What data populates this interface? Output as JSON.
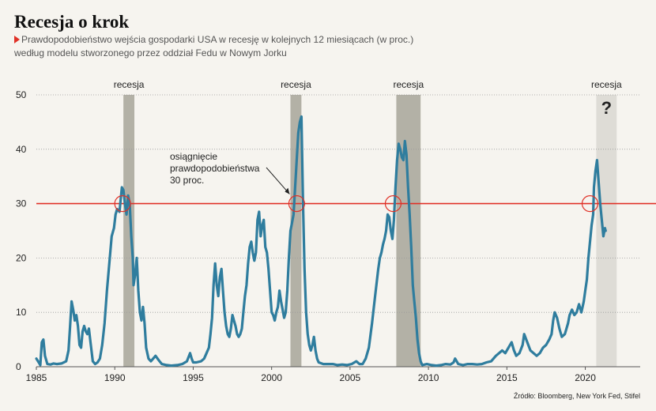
{
  "header": {
    "title": "Recesja o krok",
    "subtitle_line1": "Prawdopodobieństwo wejścia gospodarki USA w recesję w kolejnych 12 miesiącach (w proc.)",
    "subtitle_line2": "według modelu stworzonego przez oddział Fedu w Nowym Jorku"
  },
  "source": "Źródło: Bloomberg, New York Fed, Stifel",
  "colors": {
    "line": "#2f7d9e",
    "threshold": "#e03127",
    "recession": "#b3b1a6",
    "forecast": "#dedcd6",
    "background": "#f6f4ef"
  },
  "chart_data": {
    "type": "line",
    "x_axis": {
      "min": 1985,
      "max": 2023.5,
      "ticks": [
        1985,
        1990,
        1995,
        2000,
        2005,
        2010,
        2015,
        2020
      ],
      "tick_labels": [
        "1985",
        "1990",
        "1995",
        "2000",
        "2005",
        "2010",
        "2015",
        "2020"
      ]
    },
    "y_axis": {
      "min": 0,
      "max": 50,
      "ticks": [
        0,
        10,
        20,
        30,
        40,
        50
      ],
      "tick_labels": [
        "0",
        "10",
        "20",
        "30",
        "40",
        "50"
      ]
    },
    "grid": "horizontal dotted",
    "recessions": [
      {
        "start": 1990.55,
        "end": 1991.25,
        "label": "recesja"
      },
      {
        "start": 2001.2,
        "end": 2001.9,
        "label": "recesja"
      },
      {
        "start": 2007.95,
        "end": 2009.5,
        "label": "recesja"
      },
      {
        "start": 2020.7,
        "end": 2022.0,
        "label": "recesja",
        "question_mark": "?",
        "forecast": true
      }
    ],
    "threshold": {
      "value": 30
    },
    "threshold_crossings": [
      1990.5,
      2001.6,
      2007.75,
      2020.3
    ],
    "annotation": {
      "lines": [
        "osiągnięcie",
        "prawdopodobieństwa",
        "30 proc."
      ],
      "points_to": [
        2001.6,
        30
      ]
    },
    "series": [
      {
        "values": [
          [
            1985.0,
            1.5
          ],
          [
            1985.15,
            0.8
          ],
          [
            1985.25,
            0.3
          ],
          [
            1985.35,
            4.5
          ],
          [
            1985.45,
            5.0
          ],
          [
            1985.55,
            2.0
          ],
          [
            1985.7,
            0.5
          ],
          [
            1985.9,
            0.4
          ],
          [
            1986.1,
            0.6
          ],
          [
            1986.3,
            0.5
          ],
          [
            1986.6,
            0.6
          ],
          [
            1986.9,
            1.0
          ],
          [
            1987.05,
            3.0
          ],
          [
            1987.15,
            7.5
          ],
          [
            1987.25,
            12.0
          ],
          [
            1987.35,
            10.5
          ],
          [
            1987.45,
            8.5
          ],
          [
            1987.55,
            9.5
          ],
          [
            1987.65,
            7.5
          ],
          [
            1987.75,
            4.0
          ],
          [
            1987.85,
            3.5
          ],
          [
            1987.95,
            6.5
          ],
          [
            1988.05,
            7.5
          ],
          [
            1988.15,
            6.5
          ],
          [
            1988.25,
            6.0
          ],
          [
            1988.35,
            7.0
          ],
          [
            1988.45,
            4.5
          ],
          [
            1988.6,
            1.0
          ],
          [
            1988.75,
            0.5
          ],
          [
            1988.9,
            0.8
          ],
          [
            1989.05,
            1.5
          ],
          [
            1989.2,
            4.0
          ],
          [
            1989.35,
            8.0
          ],
          [
            1989.5,
            14.0
          ],
          [
            1989.65,
            19.0
          ],
          [
            1989.8,
            24.0
          ],
          [
            1989.95,
            25.5
          ],
          [
            1990.05,
            28.0
          ],
          [
            1990.15,
            29.0
          ],
          [
            1990.3,
            28.5
          ],
          [
            1990.45,
            33.0
          ],
          [
            1990.55,
            32.5
          ],
          [
            1990.65,
            30.0
          ],
          [
            1990.75,
            28.0
          ],
          [
            1990.85,
            31.5
          ],
          [
            1990.95,
            30.0
          ],
          [
            1991.05,
            24.0
          ],
          [
            1991.15,
            20.0
          ],
          [
            1991.2,
            15.0
          ],
          [
            1991.3,
            17.0
          ],
          [
            1991.4,
            20.0
          ],
          [
            1991.5,
            14.0
          ],
          [
            1991.6,
            10.0
          ],
          [
            1991.7,
            8.5
          ],
          [
            1991.8,
            11.0
          ],
          [
            1991.9,
            8.0
          ],
          [
            1992.0,
            3.5
          ],
          [
            1992.15,
            1.5
          ],
          [
            1992.3,
            1.0
          ],
          [
            1992.45,
            1.5
          ],
          [
            1992.6,
            2.0
          ],
          [
            1992.8,
            1.2
          ],
          [
            1993.0,
            0.5
          ],
          [
            1993.3,
            0.3
          ],
          [
            1993.6,
            0.2
          ],
          [
            1994.0,
            0.3
          ],
          [
            1994.3,
            0.5
          ],
          [
            1994.6,
            1.0
          ],
          [
            1994.8,
            2.5
          ],
          [
            1994.9,
            1.5
          ],
          [
            1995.0,
            0.8
          ],
          [
            1995.2,
            0.8
          ],
          [
            1995.5,
            1.0
          ],
          [
            1995.7,
            1.5
          ],
          [
            1995.85,
            2.5
          ],
          [
            1996.0,
            3.5
          ],
          [
            1996.1,
            6.0
          ],
          [
            1996.2,
            9.0
          ],
          [
            1996.3,
            15.0
          ],
          [
            1996.4,
            19.0
          ],
          [
            1996.5,
            15.0
          ],
          [
            1996.6,
            13.0
          ],
          [
            1996.7,
            16.5
          ],
          [
            1996.8,
            18.0
          ],
          [
            1996.9,
            14.0
          ],
          [
            1997.0,
            10.0
          ],
          [
            1997.1,
            7.5
          ],
          [
            1997.2,
            6.0
          ],
          [
            1997.3,
            5.5
          ],
          [
            1997.4,
            7.0
          ],
          [
            1997.5,
            9.5
          ],
          [
            1997.6,
            8.5
          ],
          [
            1997.7,
            7.5
          ],
          [
            1997.8,
            6.0
          ],
          [
            1997.9,
            5.5
          ],
          [
            1998.0,
            6.0
          ],
          [
            1998.1,
            7.0
          ],
          [
            1998.2,
            10.0
          ],
          [
            1998.3,
            13.0
          ],
          [
            1998.4,
            15.0
          ],
          [
            1998.5,
            19.0
          ],
          [
            1998.6,
            22.0
          ],
          [
            1998.7,
            23.0
          ],
          [
            1998.8,
            21.0
          ],
          [
            1998.9,
            19.5
          ],
          [
            1999.0,
            21.0
          ],
          [
            1999.1,
            27.0
          ],
          [
            1999.2,
            28.5
          ],
          [
            1999.3,
            24.0
          ],
          [
            1999.4,
            26.0
          ],
          [
            1999.5,
            27.0
          ],
          [
            1999.6,
            22.0
          ],
          [
            1999.7,
            21.0
          ],
          [
            1999.8,
            18.0
          ],
          [
            1999.9,
            14.0
          ],
          [
            2000.0,
            10.0
          ],
          [
            2000.1,
            9.5
          ],
          [
            2000.2,
            8.5
          ],
          [
            2000.3,
            10.0
          ],
          [
            2000.4,
            11.0
          ],
          [
            2000.5,
            14.0
          ],
          [
            2000.6,
            12.0
          ],
          [
            2000.7,
            10.5
          ],
          [
            2000.8,
            9.0
          ],
          [
            2000.9,
            10.0
          ],
          [
            2001.0,
            14.0
          ],
          [
            2001.1,
            20.0
          ],
          [
            2001.2,
            25.0
          ],
          [
            2001.3,
            26.5
          ],
          [
            2001.4,
            28.0
          ],
          [
            2001.5,
            33.0
          ],
          [
            2001.6,
            38.0
          ],
          [
            2001.7,
            43.0
          ],
          [
            2001.8,
            45.0
          ],
          [
            2001.9,
            46.0
          ],
          [
            2002.0,
            30.0
          ],
          [
            2002.1,
            18.0
          ],
          [
            2002.2,
            10.0
          ],
          [
            2002.3,
            6.0
          ],
          [
            2002.4,
            4.0
          ],
          [
            2002.5,
            3.0
          ],
          [
            2002.6,
            4.0
          ],
          [
            2002.7,
            5.5
          ],
          [
            2002.8,
            3.0
          ],
          [
            2002.9,
            1.5
          ],
          [
            2003.0,
            0.8
          ],
          [
            2003.3,
            0.5
          ],
          [
            2003.6,
            0.5
          ],
          [
            2003.9,
            0.5
          ],
          [
            2004.2,
            0.3
          ],
          [
            2004.5,
            0.4
          ],
          [
            2004.8,
            0.3
          ],
          [
            2005.1,
            0.5
          ],
          [
            2005.4,
            1.0
          ],
          [
            2005.6,
            0.5
          ],
          [
            2005.8,
            0.5
          ],
          [
            2006.0,
            1.5
          ],
          [
            2006.2,
            3.5
          ],
          [
            2006.4,
            8.0
          ],
          [
            2006.6,
            13.0
          ],
          [
            2006.8,
            18.0
          ],
          [
            2006.9,
            20.0
          ],
          [
            2007.0,
            21.0
          ],
          [
            2007.1,
            22.5
          ],
          [
            2007.2,
            23.5
          ],
          [
            2007.3,
            25.0
          ],
          [
            2007.4,
            28.0
          ],
          [
            2007.5,
            27.5
          ],
          [
            2007.6,
            25.0
          ],
          [
            2007.7,
            23.5
          ],
          [
            2007.8,
            27.0
          ],
          [
            2007.9,
            33.0
          ],
          [
            2008.0,
            38.0
          ],
          [
            2008.1,
            41.0
          ],
          [
            2008.2,
            40.0
          ],
          [
            2008.3,
            38.5
          ],
          [
            2008.4,
            38.0
          ],
          [
            2008.5,
            41.5
          ],
          [
            2008.6,
            39.0
          ],
          [
            2008.7,
            33.0
          ],
          [
            2008.8,
            28.0
          ],
          [
            2008.9,
            22.0
          ],
          [
            2009.0,
            15.0
          ],
          [
            2009.1,
            12.0
          ],
          [
            2009.2,
            9.0
          ],
          [
            2009.3,
            5.0
          ],
          [
            2009.4,
            2.5
          ],
          [
            2009.5,
            1.0
          ],
          [
            2009.6,
            0.3
          ],
          [
            2009.9,
            0.5
          ],
          [
            2010.2,
            0.3
          ],
          [
            2010.5,
            0.2
          ],
          [
            2010.8,
            0.3
          ],
          [
            2011.1,
            0.5
          ],
          [
            2011.4,
            0.4
          ],
          [
            2011.6,
            0.8
          ],
          [
            2011.7,
            1.5
          ],
          [
            2011.9,
            0.5
          ],
          [
            2012.2,
            0.3
          ],
          [
            2012.5,
            0.5
          ],
          [
            2012.8,
            0.5
          ],
          [
            2013.1,
            0.4
          ],
          [
            2013.4,
            0.5
          ],
          [
            2013.7,
            0.8
          ],
          [
            2014.0,
            1.0
          ],
          [
            2014.3,
            2.0
          ],
          [
            2014.5,
            2.5
          ],
          [
            2014.7,
            3.0
          ],
          [
            2014.9,
            2.5
          ],
          [
            2015.1,
            3.5
          ],
          [
            2015.3,
            4.5
          ],
          [
            2015.45,
            3.0
          ],
          [
            2015.6,
            2.0
          ],
          [
            2015.8,
            2.5
          ],
          [
            2016.0,
            4.0
          ],
          [
            2016.1,
            6.0
          ],
          [
            2016.3,
            4.5
          ],
          [
            2016.5,
            3.0
          ],
          [
            2016.7,
            2.5
          ],
          [
            2016.9,
            2.0
          ],
          [
            2017.1,
            2.5
          ],
          [
            2017.3,
            3.5
          ],
          [
            2017.5,
            4.0
          ],
          [
            2017.7,
            5.0
          ],
          [
            2017.85,
            6.0
          ],
          [
            2017.95,
            8.5
          ],
          [
            2018.05,
            10.0
          ],
          [
            2018.2,
            9.0
          ],
          [
            2018.35,
            7.0
          ],
          [
            2018.5,
            5.5
          ],
          [
            2018.7,
            6.0
          ],
          [
            2018.9,
            8.0
          ],
          [
            2019.0,
            9.5
          ],
          [
            2019.15,
            10.5
          ],
          [
            2019.3,
            9.5
          ],
          [
            2019.45,
            10.0
          ],
          [
            2019.6,
            11.5
          ],
          [
            2019.75,
            10.0
          ],
          [
            2019.9,
            12.0
          ],
          [
            2020.0,
            14.0
          ],
          [
            2020.1,
            16.0
          ],
          [
            2020.2,
            20.0
          ],
          [
            2020.3,
            23.0
          ],
          [
            2020.4,
            26.0
          ],
          [
            2020.5,
            28.0
          ],
          [
            2020.55,
            33.0
          ],
          [
            2020.65,
            36.0
          ],
          [
            2020.75,
            38.0
          ],
          [
            2020.85,
            34.0
          ],
          [
            2020.95,
            30.0
          ],
          [
            2021.05,
            27.0
          ],
          [
            2021.15,
            24.0
          ],
          [
            2021.25,
            25.5
          ],
          [
            2021.3,
            25.0
          ]
        ]
      }
    ]
  }
}
